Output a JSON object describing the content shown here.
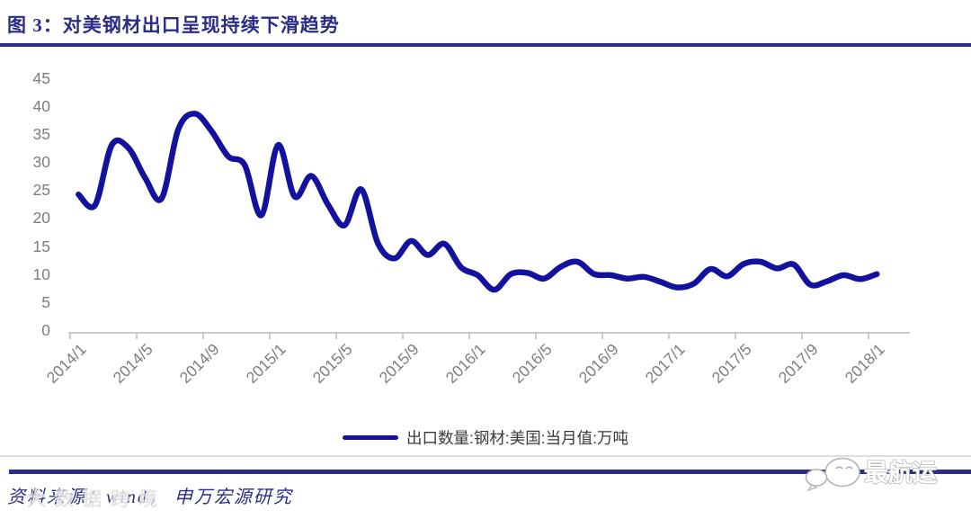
{
  "header": {
    "title": "图 3：对美钢材出口呈现持续下滑趋势"
  },
  "chart_data": {
    "type": "line",
    "title": "对美钢材出口呈现持续下滑趋势",
    "x": [
      "2014/1",
      "2014/2",
      "2014/3",
      "2014/4",
      "2014/5",
      "2014/6",
      "2014/7",
      "2014/8",
      "2014/9",
      "2014/10",
      "2014/11",
      "2014/12",
      "2015/1",
      "2015/2",
      "2015/3",
      "2015/4",
      "2015/5",
      "2015/6",
      "2015/7",
      "2015/8",
      "2015/9",
      "2015/10",
      "2015/11",
      "2015/12",
      "2016/1",
      "2016/2",
      "2016/3",
      "2016/4",
      "2016/5",
      "2016/6",
      "2016/7",
      "2016/8",
      "2016/9",
      "2016/10",
      "2016/11",
      "2016/12",
      "2017/1",
      "2017/2",
      "2017/3",
      "2017/4",
      "2017/5",
      "2017/6",
      "2017/7",
      "2017/8",
      "2017/9",
      "2017/10",
      "2017/11",
      "2017/12",
      "2018/1"
    ],
    "series": [
      {
        "name": "出口数量:钢材:美国:当月值:万吨",
        "values": [
          24.2,
          22.3,
          33.0,
          32.5,
          27.2,
          23.5,
          35.8,
          38.6,
          35.5,
          31.0,
          29.4,
          20.5,
          33.0,
          23.8,
          27.5,
          22.4,
          18.7,
          25.1,
          15.5,
          12.8,
          15.9,
          13.4,
          15.4,
          11.2,
          9.8,
          7.2,
          10.0,
          10.2,
          9.2,
          11.3,
          12.2,
          10.0,
          9.8,
          9.2,
          9.5,
          8.6,
          7.6,
          8.3,
          10.9,
          9.6,
          11.8,
          12.2,
          11.0,
          11.7,
          8.1,
          8.7,
          9.8,
          9.1,
          10.0
        ]
      }
    ],
    "x_tick_labels": [
      "2014/1",
      "2014/5",
      "2014/9",
      "2015/1",
      "2015/5",
      "2015/9",
      "2016/1",
      "2016/5",
      "2016/9",
      "2017/1",
      "2017/5",
      "2017/9",
      "2018/1"
    ],
    "y_ticks": [
      45,
      40,
      35,
      30,
      25,
      20,
      15,
      10,
      5,
      0
    ],
    "ylim": [
      0,
      45
    ],
    "grid": false,
    "legend_position": "bottom",
    "line_color": "#12129e",
    "smooth": true
  },
  "theme": {
    "navy": "#2b2c86",
    "line_blue": "#12129e",
    "axis_gray": "#c9c9c9",
    "label_gray": "#7e7e7e"
  },
  "footer": {
    "source_text": "资料来源：wind， 申万宏源研究",
    "watermark_text": "大数据跨境",
    "logo_text": "最航运"
  }
}
